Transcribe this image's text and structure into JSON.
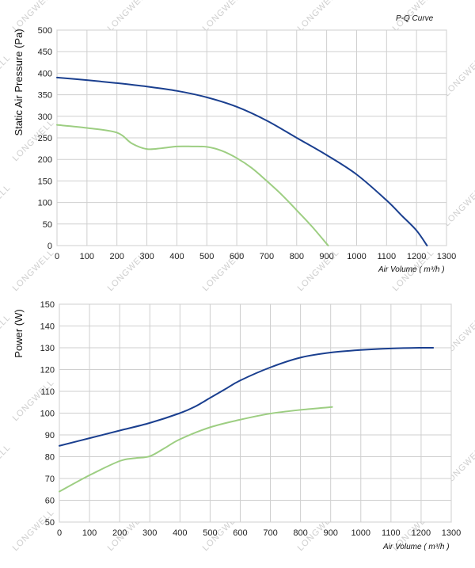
{
  "watermark_text": "LONGWELL",
  "chart_data": [
    {
      "type": "line",
      "title": "P-Q Curve",
      "xlabel": "Air Volume ( m³/h )",
      "ylabel": "Static Air Pressure  (Pa)",
      "xlim": [
        0,
        1300
      ],
      "ylim": [
        0,
        500
      ],
      "xticks": [
        0,
        100,
        200,
        300,
        400,
        500,
        600,
        700,
        800,
        900,
        1000,
        1100,
        1200,
        1300
      ],
      "yticks": [
        0,
        50,
        100,
        150,
        200,
        250,
        300,
        350,
        400,
        450,
        500
      ],
      "grid": true,
      "series": [
        {
          "color": "#1a3f8f",
          "x": [
            0,
            100,
            200,
            300,
            400,
            500,
            600,
            700,
            800,
            900,
            1000,
            1100,
            1150,
            1200,
            1235
          ],
          "y": [
            390,
            384,
            377,
            369,
            359,
            344,
            322,
            290,
            250,
            210,
            165,
            105,
            70,
            35,
            0
          ]
        },
        {
          "color": "#9dce82",
          "x": [
            0,
            100,
            200,
            250,
            300,
            350,
            400,
            450,
            500,
            550,
            600,
            650,
            700,
            750,
            800,
            850,
            905
          ],
          "y": [
            280,
            273,
            262,
            237,
            224,
            226,
            230,
            230,
            229,
            220,
            203,
            180,
            150,
            118,
            82,
            45,
            0
          ]
        }
      ]
    },
    {
      "type": "line",
      "title": "",
      "xlabel": "Air Volume ( m³/h )",
      "ylabel": "Power  (W)",
      "xlim": [
        0,
        1300
      ],
      "ylim": [
        50,
        150
      ],
      "xticks": [
        0,
        100,
        200,
        300,
        400,
        500,
        600,
        700,
        800,
        900,
        1000,
        1100,
        1200,
        1300
      ],
      "yticks": [
        50,
        60,
        70,
        80,
        90,
        100,
        110,
        120,
        130,
        140,
        150
      ],
      "grid": true,
      "series": [
        {
          "color": "#1a3f8f",
          "x": [
            0,
            100,
            200,
            300,
            400,
            450,
            500,
            550,
            600,
            700,
            800,
            900,
            1000,
            1100,
            1200,
            1240
          ],
          "y": [
            85,
            88.5,
            92,
            95.5,
            100,
            103,
            107,
            111,
            115,
            121,
            125.5,
            127.8,
            129,
            129.7,
            130,
            130
          ]
        },
        {
          "color": "#9dce82",
          "x": [
            0,
            100,
            200,
            250,
            300,
            350,
            400,
            500,
            600,
            700,
            800,
            905
          ],
          "y": [
            64,
            71.5,
            78,
            79.3,
            80.2,
            84,
            88,
            93.5,
            97,
            99.8,
            101.5,
            102.8
          ]
        }
      ]
    }
  ]
}
